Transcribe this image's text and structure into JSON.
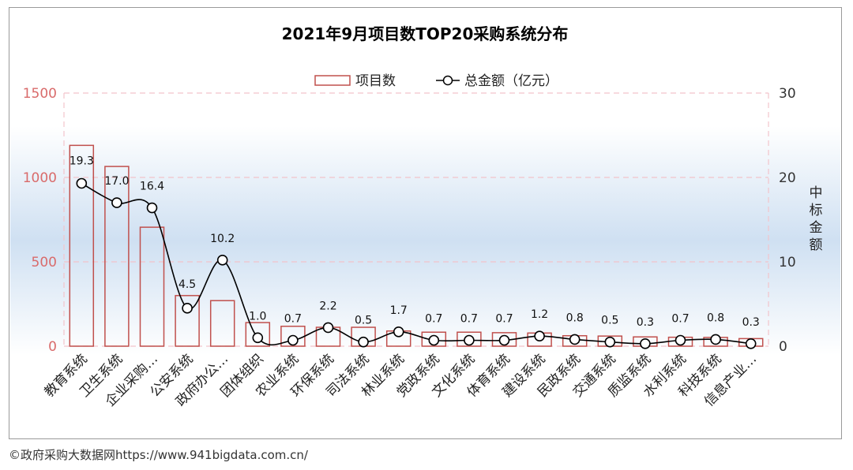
{
  "chart_data": {
    "type": "bar+line",
    "title": "2021年9月项目数TOP20采购系统分布",
    "categories": [
      "教育系统",
      "卫生系统",
      "企业采购…",
      "公安系统",
      "政府办公…",
      "团体组织",
      "农业系统",
      "环保系统",
      "司法系统",
      "林业系统",
      "党政系统",
      "文化系统",
      "体育系统",
      "建设系统",
      "民政系统",
      "交通系统",
      "质监系统",
      "水利系统",
      "科技系统",
      "信息产业…"
    ],
    "series": [
      {
        "name": "项目数",
        "type": "bar",
        "axis": "left",
        "values": [
          1190,
          1065,
          705,
          300,
          270,
          140,
          118,
          112,
          112,
          90,
          83,
          83,
          80,
          78,
          62,
          60,
          55,
          53,
          52,
          45
        ]
      },
      {
        "name": "总金额（亿元）",
        "type": "line",
        "axis": "right",
        "values": [
          19.3,
          17.0,
          16.4,
          4.5,
          10.2,
          1.0,
          0.7,
          2.2,
          0.5,
          1.7,
          0.7,
          0.7,
          0.7,
          1.2,
          0.8,
          0.5,
          0.3,
          0.7,
          0.8,
          0.3
        ]
      }
    ],
    "line_labels": [
      "19.3",
      "17.0",
      "16.4",
      "4.5",
      "10.2",
      "1.0",
      "0.7",
      "2.2",
      "0.5",
      "1.7",
      "0.7",
      "0.7",
      "0.7",
      "1.2",
      "0.8",
      "0.5",
      "0.3",
      "0.7",
      "0.8",
      "0.3"
    ],
    "y_left": {
      "min": 0,
      "max": 1500,
      "ticks": [
        "0",
        "500",
        "1000",
        "1500"
      ]
    },
    "y_right": {
      "min": 0,
      "max": 30,
      "ticks": [
        "0",
        "10",
        "20",
        "30"
      ],
      "label": "中标金额"
    },
    "legend": {
      "position": "top-center",
      "bar_label": "项目数",
      "line_label": "总金额（亿元）"
    },
    "grid": "dashed",
    "colors": {
      "bar_stroke": "#c0504d",
      "line": "#000000",
      "marker_fill": "#ffffff",
      "left_axis_text": "#d96b6b",
      "right_axis_text": "#333333",
      "grid": "#f2c4cb",
      "band": "#cfe0f2"
    }
  },
  "footer": "©政府采购大数据网https://www.941bigdata.com.cn/"
}
